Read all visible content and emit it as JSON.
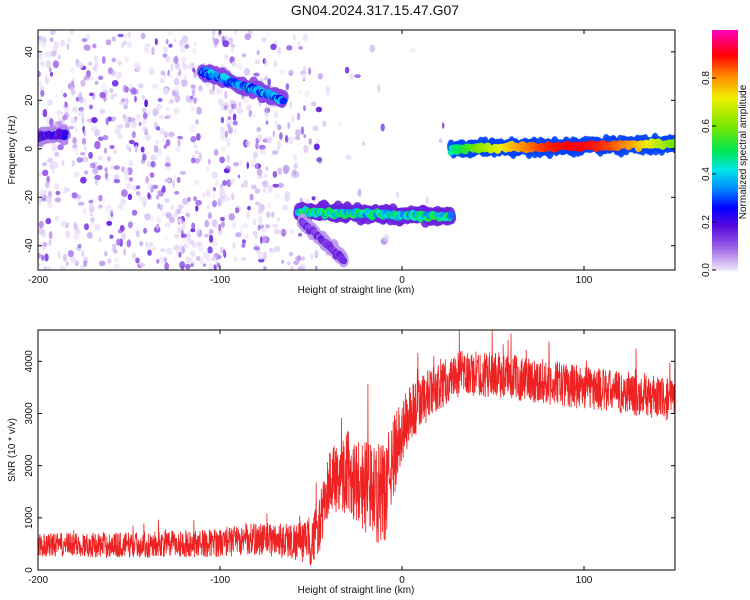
{
  "title": "GN04.2024.317.15.47.G07",
  "chart_data": [
    {
      "type": "heatmap",
      "name": "spectrogram",
      "xlabel": "Height of straight line (km)",
      "ylabel": "Frequency (Hz)",
      "xlim": [
        -200,
        150
      ],
      "ylim": [
        -50,
        49
      ],
      "xticks": [
        -200,
        -100,
        0,
        100
      ],
      "yticks": [
        -40,
        -20,
        0,
        20,
        40
      ],
      "colorbar": {
        "label": "Normalized spectral amplitude",
        "range": [
          0,
          1
        ],
        "ticks": [
          0.0,
          0.2,
          0.4,
          0.6,
          0.8
        ]
      },
      "ridges": [
        {
          "x_start": -110,
          "x_end": -65,
          "f_start": 32,
          "f_end": 20,
          "amplitude": 0.35
        },
        {
          "x_start": -200,
          "x_end": -185,
          "f_start": 5,
          "f_end": 6,
          "amplitude": 0.2
        },
        {
          "x_start": -57,
          "x_end": 27,
          "f_start": -26,
          "f_end": -28,
          "amplitude": 0.45
        },
        {
          "x_start": -55,
          "x_end": -32,
          "f_start": -30,
          "f_end": -46,
          "amplitude": 0.15
        },
        {
          "x_start": 27,
          "x_end": 150,
          "f_start": 0,
          "f_end": 2,
          "amplitude": 0.85
        }
      ]
    },
    {
      "type": "line",
      "name": "snr",
      "xlabel": "Height of straight line (km)",
      "ylabel": "SNR (10 * v/v)",
      "xlim": [
        -200,
        150
      ],
      "ylim": [
        0,
        4600
      ],
      "xticks": [
        -200,
        -100,
        0,
        100
      ],
      "yticks": [
        0,
        1000,
        2000,
        3000,
        4000
      ],
      "color": "#ee2222",
      "trend": {
        "x": [
          -200,
          -150,
          -100,
          -80,
          -60,
          -50,
          -45,
          -40,
          -30,
          -20,
          -10,
          -5,
          0,
          5,
          10,
          20,
          30,
          50,
          80,
          100,
          120,
          150
        ],
        "y": [
          480,
          480,
          520,
          600,
          560,
          520,
          900,
          1700,
          1900,
          1600,
          1400,
          2100,
          2700,
          3000,
          3200,
          3500,
          3750,
          3750,
          3600,
          3500,
          3400,
          3250
        ]
      },
      "noise_amplitude": {
        "x": [
          -200,
          -100,
          -60,
          -50,
          -30,
          -10,
          0,
          20,
          150
        ],
        "y": [
          250,
          300,
          400,
          500,
          900,
          1100,
          700,
          500,
          450
        ]
      }
    }
  ]
}
